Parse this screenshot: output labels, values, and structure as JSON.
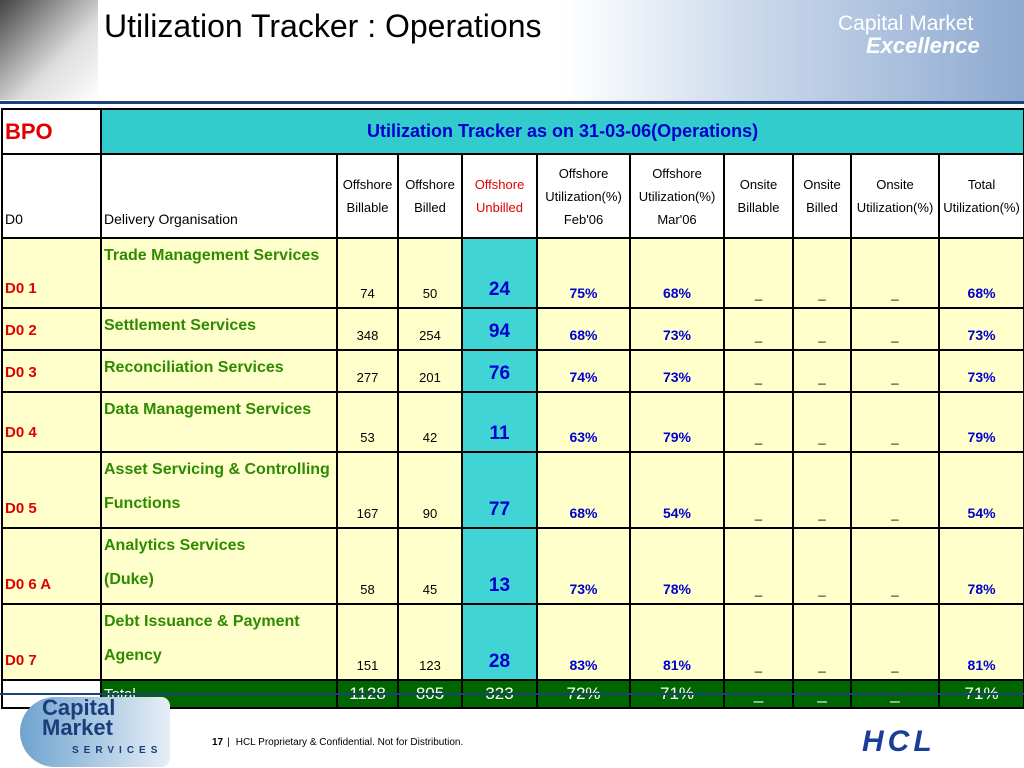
{
  "header": {
    "title": "Utilization Tracker : Operations",
    "logo_line1": "Capital Market",
    "logo_line2": "Excellence"
  },
  "table": {
    "corner": "BPO",
    "caption": "Utilization Tracker as on 31-03-06(Operations)",
    "columns": [
      "D0",
      "Delivery Organisation",
      "Offshore\nBillable",
      "Offshore\nBilled",
      "Offshore\nUnbilled",
      "Offshore\nUtilization(%)\nFeb'06",
      "Offshore\nUtilization(%)\nMar'06",
      "Onsite\nBillable",
      "Onsite\nBilled",
      "Onsite\nUtilization(%)",
      "Total\nUtilization(%)"
    ],
    "rows": [
      [
        "D0 1",
        "Trade Management Services",
        "74",
        "50",
        "24",
        "75%",
        "68%",
        "_",
        "_",
        "_",
        "68%"
      ],
      [
        "D0 2",
        "Settlement Services",
        "348",
        "254",
        "94",
        "68%",
        "73%",
        "_",
        "_",
        "_",
        "73%"
      ],
      [
        "D0 3",
        "Reconciliation Services",
        "277",
        "201",
        "76",
        "74%",
        "73%",
        "_",
        "_",
        "_",
        "73%"
      ],
      [
        "D0 4",
        "Data Management Services",
        "53",
        "42",
        "11",
        "63%",
        "79%",
        "_",
        "_",
        "_",
        "79%"
      ],
      [
        "D0 5",
        "Asset Servicing & Controlling\nFunctions",
        "167",
        "90",
        "77",
        "68%",
        "54%",
        "_",
        "_",
        "_",
        "54%"
      ],
      [
        "D0 6 A",
        " Analytics  Services\n(Duke)",
        "58",
        "45",
        "13",
        "73%",
        "78%",
        "_",
        "_",
        "_",
        "78%"
      ],
      [
        "D0 7",
        "Debt Issuance & Payment\nAgency",
        "151",
        "123",
        "28",
        "83%",
        "81%",
        "_",
        "_",
        "_",
        "81%"
      ]
    ],
    "total": [
      "Total",
      "1128",
      "805",
      "323",
      "72%",
      "71%",
      "_",
      "_",
      "_",
      "71%"
    ]
  },
  "footer": {
    "page": "17",
    "separator": "|",
    "notice": "HCL Proprietary & Confidential. Not for Distribution.",
    "logo_left": "Capital\nMarket",
    "logo_left_sub": "SERVICES",
    "logo_right": "HCL"
  }
}
